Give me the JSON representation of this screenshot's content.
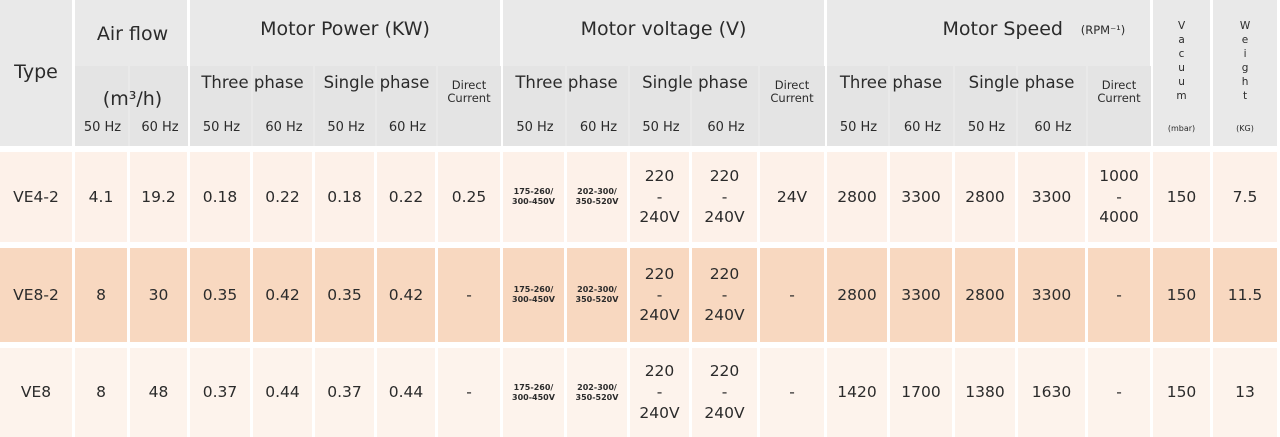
{
  "header": {
    "type": "Type",
    "air_flow": {
      "title": "Air flow",
      "unit": "(m³/h)",
      "hz": [
        "50 Hz",
        "60 Hz"
      ]
    },
    "motor_power": {
      "title": "Motor Power (KW)",
      "three_phase": {
        "title": "Three phase",
        "hz": [
          "50 Hz",
          "60 Hz"
        ]
      },
      "single_phase": {
        "title": "Single phase",
        "hz": [
          "50 Hz",
          "60 Hz"
        ]
      },
      "direct_current": "Direct\nCurrent"
    },
    "motor_voltage": {
      "title": "Motor voltage (V)",
      "three_phase": {
        "title": "Three phase",
        "hz": [
          "50 Hz",
          "60 Hz"
        ]
      },
      "single_phase": {
        "title": "Single phase",
        "hz": [
          "50 Hz",
          "60 Hz"
        ]
      },
      "direct_current": "Direct\nCurrent"
    },
    "motor_speed": {
      "title": "Motor Speed",
      "unit": "(RPM⁻¹)",
      "three_phase": {
        "title": "Three phase",
        "hz": [
          "50 Hz",
          "60 Hz"
        ]
      },
      "single_phase": {
        "title": "Single phase",
        "hz": [
          "50 Hz",
          "60 Hz"
        ]
      },
      "direct_current": "Direct\nCurrent"
    },
    "vacuum": {
      "title": "Vacuum",
      "unit": "(mbar)"
    },
    "weight": {
      "title": "Weight",
      "unit": "(KG)"
    }
  },
  "rows": [
    [
      "VE4-2",
      "4.1",
      "19.2",
      "0.18",
      "0.22",
      "0.18",
      "0.22",
      "0.25",
      "175-260/\n300-450V",
      "202-300/\n350-520V",
      "220\n-\n240V",
      "220\n-\n240V",
      "24V",
      "2800",
      "3300",
      "2800",
      "3300",
      "1000\n-\n4000",
      "150",
      "7.5"
    ],
    [
      "VE8-2",
      "8",
      "30",
      "0.35",
      "0.42",
      "0.35",
      "0.42",
      "-",
      "175-260/\n300-450V",
      "202-300/\n350-520V",
      "220\n-\n240V",
      "220\n-\n240V",
      "-",
      "2800",
      "3300",
      "2800",
      "3300",
      "-",
      "150",
      "11.5"
    ],
    [
      "VE8",
      "8",
      "48",
      "0.37",
      "0.44",
      "0.37",
      "0.44",
      "-",
      "175-260/\n300-450V",
      "202-300/\n350-520V",
      "220\n-\n240V",
      "220\n-\n240V",
      "-",
      "1420",
      "1700",
      "1380",
      "1630",
      "-",
      "150",
      "13"
    ]
  ]
}
